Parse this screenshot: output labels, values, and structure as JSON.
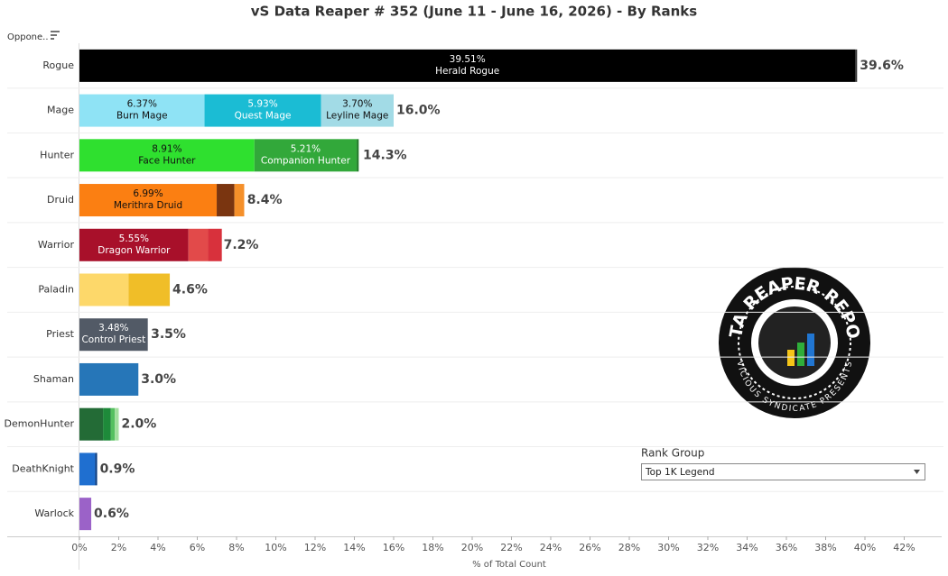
{
  "chart_data": {
    "type": "stacked-hbar",
    "title": "vS Data Reaper # 352 (June 11 - June 16, 2026) - By Ranks",
    "row_header": "Oppone..",
    "x_label": "% of Total Count",
    "xlim": [
      0,
      44
    ],
    "xticks": [
      {
        "value": 0,
        "label": "0%"
      },
      {
        "value": 2,
        "label": "2%"
      },
      {
        "value": 4,
        "label": "4%"
      },
      {
        "value": 6,
        "label": "6%"
      },
      {
        "value": 8,
        "label": "8%"
      },
      {
        "value": 10,
        "label": "10%"
      },
      {
        "value": 12,
        "label": "12%"
      },
      {
        "value": 14,
        "label": "14%"
      },
      {
        "value": 16,
        "label": "16%"
      },
      {
        "value": 18,
        "label": "18%"
      },
      {
        "value": 20,
        "label": "20%"
      },
      {
        "value": 22,
        "label": "22%"
      },
      {
        "value": 24,
        "label": "24%"
      },
      {
        "value": 26,
        "label": "26%"
      },
      {
        "value": 28,
        "label": "28%"
      },
      {
        "value": 30,
        "label": "30%"
      },
      {
        "value": 32,
        "label": "32%"
      },
      {
        "value": 34,
        "label": "34%"
      },
      {
        "value": 36,
        "label": "36%"
      },
      {
        "value": 38,
        "label": "38%"
      },
      {
        "value": 40,
        "label": "40%"
      },
      {
        "value": 42,
        "label": "42%"
      }
    ],
    "rows": [
      {
        "name": "Rogue",
        "total": 39.6,
        "total_label": "39.6%",
        "segments": [
          {
            "value": 39.51,
            "value_label": "39.51%",
            "name": "Herald Rogue",
            "color": "#000000"
          },
          {
            "value": 0.09,
            "color": "#333333"
          }
        ]
      },
      {
        "name": "Mage",
        "total": 16.0,
        "total_label": "16.0%",
        "segments": [
          {
            "value": 6.37,
            "value_label": "6.37%",
            "name": "Burn Mage",
            "color": "#8fe3f5"
          },
          {
            "value": 5.93,
            "value_label": "5.93%",
            "name": "Quest Mage",
            "color": "#1bbcd4"
          },
          {
            "value": 3.7,
            "value_label": "3.70%",
            "name": "Leyline Mage",
            "color": "#a2dbe6"
          }
        ]
      },
      {
        "name": "Hunter",
        "total": 14.3,
        "total_label": "14.3%",
        "segments": [
          {
            "value": 8.91,
            "value_label": "8.91%",
            "name": "Face Hunter",
            "color": "#2fe02f"
          },
          {
            "value": 5.21,
            "value_label": "5.21%",
            "name": "Companion Hunter",
            "color": "#32a83a"
          },
          {
            "value": 0.1,
            "color": "#1f7a26"
          }
        ]
      },
      {
        "name": "Druid",
        "total": 8.4,
        "total_label": "8.4%",
        "segments": [
          {
            "value": 6.99,
            "value_label": "6.99%",
            "name": "Merithra Druid",
            "color": "#fb7f12"
          },
          {
            "value": 0.9,
            "color": "#7a3510"
          },
          {
            "value": 0.5,
            "color": "#f5902a"
          }
        ]
      },
      {
        "name": "Warrior",
        "total": 7.2,
        "total_label": "7.2%",
        "segments": [
          {
            "value": 5.55,
            "value_label": "5.55%",
            "name": "Dragon Warrior",
            "color": "#a8102a"
          },
          {
            "value": 1.0,
            "color": "#e24a4a"
          },
          {
            "value": 0.7,
            "color": "#d8313c"
          }
        ]
      },
      {
        "name": "Paladin",
        "total": 4.6,
        "total_label": "4.6%",
        "segments": [
          {
            "value": 2.5,
            "color": "#fdd86a"
          },
          {
            "value": 2.1,
            "color": "#f0be28"
          }
        ]
      },
      {
        "name": "Priest",
        "total": 3.5,
        "total_label": "3.5%",
        "segments": [
          {
            "value": 3.48,
            "value_label": "3.48%",
            "name": "Control Priest",
            "color": "#525a66"
          }
        ]
      },
      {
        "name": "Shaman",
        "total": 3.0,
        "total_label": "3.0%",
        "segments": [
          {
            "value": 3.0,
            "color": "#2676b8"
          }
        ]
      },
      {
        "name": "DemonHunter",
        "total": 2.0,
        "total_label": "2.0%",
        "segments": [
          {
            "value": 1.2,
            "color": "#236b36"
          },
          {
            "value": 0.4,
            "color": "#1e8a3a"
          },
          {
            "value": 0.2,
            "color": "#55c060"
          },
          {
            "value": 0.2,
            "color": "#a3df9f"
          }
        ]
      },
      {
        "name": "DeathKnight",
        "total": 0.9,
        "total_label": "0.9%",
        "segments": [
          {
            "value": 0.8,
            "color": "#1f6fd0"
          },
          {
            "value": 0.1,
            "color": "#0d3d80"
          }
        ]
      },
      {
        "name": "Warlock",
        "total": 0.6,
        "total_label": "0.6%",
        "segments": [
          {
            "value": 0.6,
            "color": "#9b62c8"
          }
        ]
      }
    ],
    "filter": {
      "label": "Rank Group",
      "selected": "Top 1K Legend"
    },
    "logo": {
      "title": "DATA REAPER REPORT",
      "subtitle": "VICIOUS SYNDICATE PRESENTS"
    }
  }
}
